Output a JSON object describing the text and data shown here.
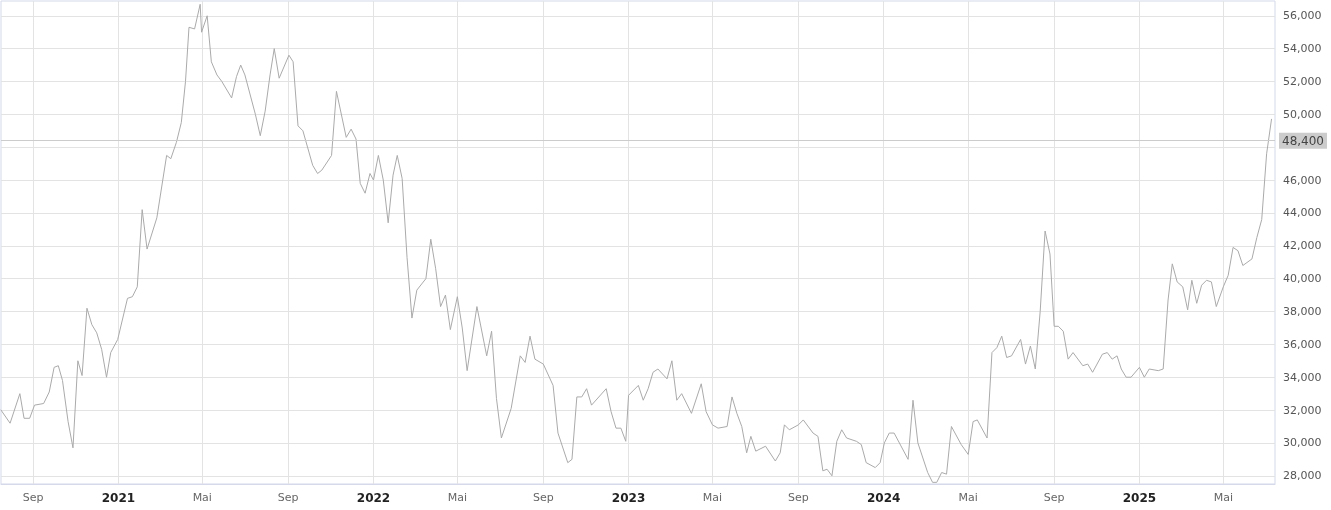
{
  "chart_data": {
    "type": "line",
    "x": [
      "2020-07-17",
      "2020-07-30",
      "2020-08-13",
      "2020-08-19",
      "2020-08-27",
      "2020-09-03",
      "2020-09-16",
      "2020-09-24",
      "2020-10-01",
      "2020-10-07",
      "2020-10-13",
      "2020-10-21",
      "2020-10-28",
      "2020-11-04",
      "2020-11-10",
      "2020-11-17",
      "2020-11-24",
      "2020-12-01",
      "2020-12-08",
      "2020-12-15",
      "2020-12-21",
      "2020-12-31",
      "2021-01-14",
      "2021-01-21",
      "2021-01-28",
      "2021-02-04",
      "2021-02-11",
      "2021-02-25",
      "2021-03-11",
      "2021-03-17",
      "2021-03-25",
      "2021-04-01",
      "2021-04-07",
      "2021-04-12",
      "2021-04-20",
      "2021-04-28",
      "2021-04-30",
      "2021-05-08",
      "2021-05-14",
      "2021-05-22",
      "2021-05-29",
      "2021-06-12",
      "2021-06-19",
      "2021-06-25",
      "2021-07-01",
      "2021-07-16",
      "2021-07-23",
      "2021-07-30",
      "2021-08-06",
      "2021-08-12",
      "2021-08-19",
      "2021-09-02",
      "2021-09-08",
      "2021-09-15",
      "2021-09-22",
      "2021-10-06",
      "2021-10-13",
      "2021-10-19",
      "2021-11-02",
      "2021-11-09",
      "2021-11-23",
      "2021-11-30",
      "2021-12-07",
      "2021-12-13",
      "2021-12-20",
      "2021-12-27",
      "2022-01-01",
      "2022-01-08",
      "2022-01-15",
      "2022-01-22",
      "2022-01-29",
      "2022-02-04",
      "2022-02-11",
      "2022-02-18",
      "2022-02-25",
      "2022-03-04",
      "2022-03-17",
      "2022-03-24",
      "2022-03-31",
      "2022-04-07",
      "2022-04-14",
      "2022-04-21",
      "2022-05-01",
      "2022-05-08",
      "2022-05-15",
      "2022-05-29",
      "2022-06-12",
      "2022-06-19",
      "2022-06-26",
      "2022-07-03",
      "2022-07-17",
      "2022-07-30",
      "2022-08-06",
      "2022-08-13",
      "2022-08-20",
      "2022-09-01",
      "2022-09-15",
      "2022-09-22",
      "2022-10-06",
      "2022-10-12",
      "2022-10-19",
      "2022-10-26",
      "2022-11-02",
      "2022-11-09",
      "2022-11-30",
      "2022-12-07",
      "2022-12-14",
      "2022-12-21",
      "2022-12-28",
      "2023-01-01",
      "2023-01-15",
      "2023-01-22",
      "2023-01-29",
      "2023-02-05",
      "2023-02-12",
      "2023-02-25",
      "2023-03-04",
      "2023-03-11",
      "2023-03-18",
      "2023-04-01",
      "2023-04-15",
      "2023-04-22",
      "2023-05-01",
      "2023-05-09",
      "2023-05-22",
      "2023-05-29",
      "2023-06-05",
      "2023-06-12",
      "2023-06-19",
      "2023-06-25",
      "2023-07-02",
      "2023-07-16",
      "2023-07-30",
      "2023-08-06",
      "2023-08-12",
      "2023-08-19",
      "2023-09-01",
      "2023-09-08",
      "2023-09-22",
      "2023-09-29",
      "2023-10-06",
      "2023-10-12",
      "2023-10-19",
      "2023-10-26",
      "2023-11-02",
      "2023-11-09",
      "2023-11-23",
      "2023-11-30",
      "2023-12-07",
      "2023-12-20",
      "2023-12-27",
      "2024-01-02",
      "2024-01-09",
      "2024-01-16",
      "2024-02-05",
      "2024-02-12",
      "2024-02-19",
      "2024-03-04",
      "2024-03-11",
      "2024-03-17",
      "2024-03-24",
      "2024-03-31",
      "2024-04-07",
      "2024-04-21",
      "2024-05-01",
      "2024-05-08",
      "2024-05-14",
      "2024-05-28",
      "2024-06-04",
      "2024-06-11",
      "2024-06-18",
      "2024-06-25",
      "2024-07-02",
      "2024-07-15",
      "2024-07-22",
      "2024-07-29",
      "2024-08-05",
      "2024-08-12",
      "2024-08-19",
      "2024-08-26",
      "2024-09-01",
      "2024-09-07",
      "2024-09-14",
      "2024-09-21",
      "2024-09-28",
      "2024-10-12",
      "2024-10-19",
      "2024-10-26",
      "2024-11-09",
      "2024-11-16",
      "2024-11-23",
      "2024-11-30",
      "2024-12-06",
      "2024-12-13",
      "2024-12-20",
      "2025-01-01",
      "2025-01-08",
      "2025-01-15",
      "2025-01-28",
      "2025-02-04",
      "2025-02-11",
      "2025-02-17",
      "2025-02-24",
      "2025-03-04",
      "2025-03-11",
      "2025-03-17",
      "2025-03-24",
      "2025-03-31",
      "2025-04-07",
      "2025-04-14",
      "2025-04-21",
      "2025-05-01",
      "2025-05-08",
      "2025-05-15",
      "2025-05-22",
      "2025-05-29",
      "2025-06-11",
      "2025-06-18",
      "2025-06-25",
      "2025-07-02",
      "2025-07-09"
    ],
    "series": [
      {
        "color": "#aaaaaa",
        "values": [
          32000,
          31200,
          33000,
          31500,
          31500,
          32300,
          32400,
          33100,
          34600,
          34700,
          33800,
          31300,
          29700,
          35000,
          34100,
          38200,
          37200,
          36700,
          35700,
          34000,
          35500,
          36300,
          38800,
          38900,
          39500,
          44200,
          41800,
          43700,
          47500,
          47300,
          48300,
          49500,
          52000,
          55300,
          55200,
          56700,
          55000,
          56000,
          53200,
          52400,
          52000,
          51000,
          52300,
          53000,
          52400,
          50000,
          48700,
          50200,
          52400,
          54000,
          52200,
          53600,
          53200,
          49300,
          49000,
          46900,
          46400,
          46600,
          47500,
          51400,
          48600,
          49100,
          48500,
          45800,
          45200,
          46400,
          46000,
          47500,
          46000,
          43400,
          46300,
          47500,
          46100,
          41300,
          37600,
          39300,
          40000,
          42400,
          40600,
          38300,
          39000,
          36900,
          38900,
          37000,
          34400,
          38300,
          35300,
          36800,
          32700,
          30300,
          32100,
          35300,
          34900,
          36500,
          35100,
          34800,
          33500,
          30600,
          28800,
          29000,
          32800,
          32800,
          33300,
          32300,
          33300,
          31900,
          30900,
          30900,
          30100,
          32900,
          33500,
          32600,
          33300,
          34300,
          34500,
          33900,
          35000,
          32600,
          33000,
          31800,
          33600,
          31900,
          31100,
          30900,
          31000,
          32800,
          31800,
          31000,
          29400,
          30400,
          29500,
          29800,
          28900,
          29400,
          31100,
          30800,
          31100,
          31400,
          30600,
          30400,
          28300,
          28400,
          28000,
          30100,
          30800,
          30300,
          30100,
          29900,
          28800,
          28500,
          28800,
          30000,
          30600,
          30600,
          29000,
          32600,
          30000,
          28200,
          27600,
          27600,
          28200,
          28100,
          31000,
          29900,
          29300,
          31300,
          31400,
          30300,
          35500,
          35800,
          36500,
          35200,
          35300,
          36300,
          34800,
          35900,
          34500,
          38000,
          42900,
          41500,
          37100,
          37100,
          36800,
          35100,
          35500,
          34700,
          34800,
          34300,
          35400,
          35500,
          35100,
          35300,
          34500,
          34000,
          34000,
          34600,
          34000,
          34500,
          34400,
          34500,
          38700,
          40900,
          39800,
          39500,
          38100,
          39900,
          38500,
          39600,
          39900,
          39800,
          38300,
          39500,
          40200,
          41900,
          41700,
          40800,
          41200,
          42500,
          43600,
          47600,
          49700
        ]
      }
    ],
    "xlim": [
      "2020-07-17",
      "2025-07-14"
    ],
    "xticks": [
      {
        "value": "2020-09-01",
        "label": "Sep"
      },
      {
        "value": "2021-01-01",
        "label": "2021"
      },
      {
        "value": "2021-05-01",
        "label": "Mai"
      },
      {
        "value": "2021-09-01",
        "label": "Sep"
      },
      {
        "value": "2022-01-01",
        "label": "2022"
      },
      {
        "value": "2022-05-01",
        "label": "Mai"
      },
      {
        "value": "2022-09-01",
        "label": "Sep"
      },
      {
        "value": "2023-01-01",
        "label": "2023"
      },
      {
        "value": "2023-05-01",
        "label": "Mai"
      },
      {
        "value": "2023-09-01",
        "label": "Sep"
      },
      {
        "value": "2024-01-01",
        "label": "2024"
      },
      {
        "value": "2024-05-01",
        "label": "Mai"
      },
      {
        "value": "2024-09-01",
        "label": "Sep"
      },
      {
        "value": "2025-01-01",
        "label": "2025"
      },
      {
        "value": "2025-05-01",
        "label": "Mai"
      }
    ],
    "ylim": [
      27500,
      56900
    ],
    "yticks": [
      {
        "value": 28000,
        "label": "28,000"
      },
      {
        "value": 30000,
        "label": "30,000"
      },
      {
        "value": 32000,
        "label": "32,000"
      },
      {
        "value": 34000,
        "label": "34,000"
      },
      {
        "value": 36000,
        "label": "36,000"
      },
      {
        "value": 38000,
        "label": "38,000"
      },
      {
        "value": 40000,
        "label": "40,000"
      },
      {
        "value": 42000,
        "label": "42,000"
      },
      {
        "value": 44000,
        "label": "44,000"
      },
      {
        "value": 46000,
        "label": "46,000"
      },
      {
        "value": 48000,
        "label": null
      },
      {
        "value": 50000,
        "label": "50,000"
      },
      {
        "value": 52000,
        "label": "52,000"
      },
      {
        "value": 54000,
        "label": "54,000"
      },
      {
        "value": 56000,
        "label": "56,000"
      }
    ],
    "ref_lines": [
      {
        "axis": "y",
        "value": 48400,
        "label": "48,400",
        "color": "#cccccc"
      }
    ],
    "grid": true,
    "marker": "none",
    "line_style": "solid"
  }
}
